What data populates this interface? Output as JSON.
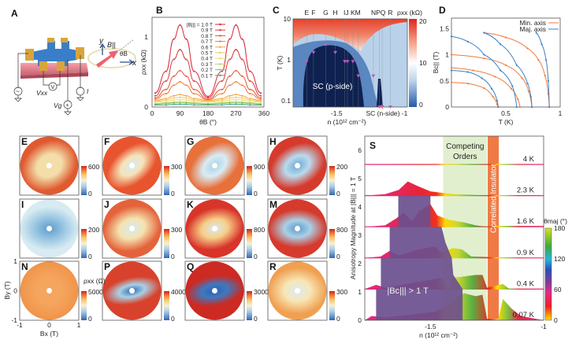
{
  "panels": {
    "A": {
      "label": "A",
      "vxx": "Vxx",
      "vg": "Vg",
      "current": "I",
      "x": "x",
      "y": "y",
      "b": "B||",
      "theta": "θB",
      "ac_symbol": "~",
      "v_symbol": "V",
      "plus_symbol": "+"
    },
    "B": {
      "label": "B"
    },
    "C": {
      "label": "C"
    },
    "D": {
      "label": "D"
    },
    "S": {
      "label": "S"
    }
  },
  "chart_data": [
    {
      "id": "B",
      "type": "line",
      "xlabel": "θB (°)",
      "ylabel": "ρxx (kΩ)",
      "xlim": [
        0,
        360
      ],
      "ylim": [
        0,
        1.28
      ],
      "xticks": [
        0,
        90,
        180,
        270,
        360
      ],
      "yticks": [
        0,
        1
      ],
      "legend_title": "|B||| =",
      "legend_placement": "top-center",
      "x": [
        10,
        45,
        70,
        90,
        110,
        135,
        180,
        225,
        250,
        270,
        290,
        315,
        350
      ],
      "series": [
        {
          "name": "1.0 T",
          "color": "#d62839",
          "values": [
            0.2,
            0.51,
            0.97,
            1.17,
            0.97,
            0.51,
            0.15,
            0.51,
            0.97,
            1.17,
            0.97,
            0.51,
            0.2
          ]
        },
        {
          "name": "0.9 T",
          "color": "#dc3a3a",
          "values": [
            0.16,
            0.37,
            0.68,
            0.82,
            0.68,
            0.37,
            0.13,
            0.37,
            0.68,
            0.82,
            0.68,
            0.37,
            0.16
          ]
        },
        {
          "name": "0.8 T",
          "color": "#e4533a",
          "values": [
            0.13,
            0.25,
            0.44,
            0.52,
            0.44,
            0.25,
            0.11,
            0.25,
            0.44,
            0.52,
            0.44,
            0.25,
            0.13
          ]
        },
        {
          "name": "0.7 T",
          "color": "#ef7d34",
          "values": [
            0.11,
            0.19,
            0.31,
            0.36,
            0.31,
            0.19,
            0.1,
            0.19,
            0.31,
            0.36,
            0.31,
            0.19,
            0.11
          ]
        },
        {
          "name": "0.6 T",
          "color": "#f5a43c",
          "values": [
            0.09,
            0.12,
            0.16,
            0.18,
            0.16,
            0.12,
            0.09,
            0.12,
            0.16,
            0.18,
            0.16,
            0.12,
            0.09
          ]
        },
        {
          "name": "0.5 T",
          "color": "#f4c95a",
          "values": [
            0.08,
            0.1,
            0.13,
            0.14,
            0.13,
            0.1,
            0.08,
            0.1,
            0.13,
            0.14,
            0.13,
            0.1,
            0.08
          ]
        },
        {
          "name": "0.4 T",
          "color": "#e7e06c",
          "values": [
            0.07,
            0.08,
            0.1,
            0.11,
            0.1,
            0.08,
            0.07,
            0.08,
            0.1,
            0.11,
            0.1,
            0.08,
            0.07
          ]
        },
        {
          "name": "0.3 T",
          "color": "#bcd36a",
          "values": [
            0.05,
            0.06,
            0.07,
            0.08,
            0.07,
            0.06,
            0.05,
            0.06,
            0.07,
            0.08,
            0.07,
            0.06,
            0.05
          ]
        },
        {
          "name": "0.2 T",
          "color": "#85c46e",
          "values": [
            0.04,
            0.05,
            0.06,
            0.06,
            0.06,
            0.05,
            0.04,
            0.05,
            0.06,
            0.06,
            0.06,
            0.05,
            0.04
          ]
        },
        {
          "name": "0.1 T",
          "color": "#3aa87a",
          "values": [
            0.03,
            0.03,
            0.04,
            0.04,
            0.04,
            0.03,
            0.03,
            0.03,
            0.04,
            0.04,
            0.04,
            0.03,
            0.03
          ]
        }
      ]
    },
    {
      "id": "C",
      "type": "heatmap",
      "xlabel": "n (10¹² cm⁻²)",
      "ylabel": "T (K)",
      "yscale": "log",
      "xlim": [
        -1.82,
        -0.98
      ],
      "ylim": [
        0.07,
        10
      ],
      "xticks": [
        "-1.5",
        "-1"
      ],
      "yticks": [
        "10",
        "1",
        "0.1"
      ],
      "colorbar": {
        "label": "ρxx (kΩ)",
        "min": 0,
        "max": 20,
        "ticks": [
          "0",
          "10",
          "20"
        ],
        "colors": [
          "#2a5aa8",
          "#ffffff",
          "#e8321e"
        ]
      },
      "annotations": [
        "SC (p-side)",
        "SC (n-side)"
      ],
      "markers": [
        {
          "label": "E",
          "n": -1.72,
          "T": 0.9
        },
        {
          "label": "F",
          "n": -1.67,
          "T": 1.5
        },
        {
          "label": "G",
          "n": -1.58,
          "T": 2.3
        },
        {
          "label": "H",
          "n": -1.51,
          "T": 1.5
        },
        {
          "label": "I",
          "n": -1.44,
          "T": 0.9
        },
        {
          "label": "J",
          "n": -1.42,
          "T": 0.9
        },
        {
          "label": "K",
          "n": -1.38,
          "T": 0.9
        },
        {
          "label": "M",
          "n": -1.34,
          "T": 0.4
        },
        {
          "label": "N",
          "n": -1.23,
          "T": 0.4
        },
        {
          "label": "P",
          "n": -1.185,
          "T": 0.07
        },
        {
          "label": "Q",
          "n": -1.165,
          "T": 0.07
        },
        {
          "label": "R",
          "n": -1.105,
          "T": 0.07
        }
      ]
    },
    {
      "id": "D",
      "type": "line",
      "xlabel": "T (K)",
      "ylabel": "Bc|| (T)",
      "xlim": [
        0,
        1
      ],
      "ylim": [
        0,
        1.7
      ],
      "xticks": [
        "0.5",
        "1"
      ],
      "yticks": [
        "0",
        "0.5",
        "1",
        "1.5"
      ],
      "legend_placement": "top-right",
      "series": [
        {
          "name": "Min. axis",
          "color": "#f07a3a",
          "curves": [
            [
              [
                0.3,
                1.42
              ],
              [
                0.5,
                1.33
              ],
              [
                0.7,
                1.12
              ],
              [
                0.8,
                0.9
              ],
              [
                0.86,
                0.6
              ],
              [
                0.89,
                0.25
              ],
              [
                0.9,
                0
              ]
            ],
            [
              [
                0,
                1.0
              ],
              [
                0.3,
                0.93
              ],
              [
                0.5,
                0.8
              ],
              [
                0.65,
                0.55
              ],
              [
                0.71,
                0.3
              ],
              [
                0.74,
                0
              ]
            ],
            [
              [
                0,
                0.75
              ],
              [
                0.2,
                0.7
              ],
              [
                0.4,
                0.58
              ],
              [
                0.55,
                0.35
              ],
              [
                0.61,
                0.15
              ],
              [
                0.63,
                0
              ]
            ],
            [
              [
                0,
                0.47
              ],
              [
                0.15,
                0.45
              ],
              [
                0.3,
                0.36
              ],
              [
                0.38,
                0.2
              ],
              [
                0.42,
                0.05
              ],
              [
                0.43,
                0
              ]
            ]
          ]
        },
        {
          "name": "Maj. axis",
          "color": "#3d7fc4",
          "curves": [
            [
              [
                0.78,
                1.42
              ],
              [
                0.83,
                1.2
              ],
              [
                0.87,
                0.9
              ],
              [
                0.89,
                0.5
              ],
              [
                0.9,
                0
              ]
            ],
            [
              [
                0.3,
                1.42
              ],
              [
                0.45,
                1.2
              ],
              [
                0.6,
                0.8
              ],
              [
                0.7,
                0.45
              ],
              [
                0.73,
                0.2
              ],
              [
                0.74,
                0
              ]
            ],
            [
              [
                0,
                1.35
              ],
              [
                0.15,
                1.25
              ],
              [
                0.3,
                1.0
              ],
              [
                0.45,
                0.7
              ],
              [
                0.56,
                0.4
              ],
              [
                0.6,
                0
              ]
            ],
            [
              [
                0,
                0.7
              ],
              [
                0.15,
                0.67
              ],
              [
                0.28,
                0.55
              ],
              [
                0.37,
                0.35
              ],
              [
                0.42,
                0.12
              ],
              [
                0.43,
                0
              ]
            ]
          ]
        }
      ]
    },
    {
      "id": "E-R",
      "type": "heatmap",
      "xlabel": "Bx (T)",
      "ylabel": "By (T)",
      "xticks": [
        "-1",
        "0",
        "1"
      ],
      "yticks": [
        "1",
        "0",
        "-1"
      ],
      "colorbar_label": "ρxx (Ω)",
      "panels": [
        {
          "label": "E",
          "max": "600",
          "min": "0"
        },
        {
          "label": "F",
          "max": "300",
          "min": "0"
        },
        {
          "label": "G",
          "max": "900",
          "min": "0"
        },
        {
          "label": "H",
          "max": "200",
          "min": "0"
        },
        {
          "label": "I",
          "max": "200",
          "min": "0"
        },
        {
          "label": "J",
          "max": "300",
          "min": "0"
        },
        {
          "label": "K",
          "max": "800",
          "min": "0"
        },
        {
          "label": "M",
          "max": "800",
          "min": "0"
        },
        {
          "label": "N",
          "max": "5000",
          "min": "0"
        },
        {
          "label": "P",
          "max": "4000",
          "min": "0"
        },
        {
          "label": "Q",
          "max": "3000",
          "min": "0"
        },
        {
          "label": "R",
          "max": "300",
          "min": "0"
        }
      ]
    },
    {
      "id": "S",
      "type": "area",
      "xlabel": "n (10¹² cm⁻²)",
      "ylabel": "Anisotropy Magnitude at |B||| = 1 T",
      "xlim": [
        -1.79,
        -1
      ],
      "ylim": [
        0,
        6.5
      ],
      "xticks": [
        "-1.5",
        "-1"
      ],
      "yticks": [
        "0",
        "1",
        "2",
        "3",
        "4",
        "5",
        "6"
      ],
      "colorbar": {
        "label": "θmaj (°)",
        "min": 0,
        "max": 180,
        "ticks": [
          "0",
          "60",
          "120",
          "180"
        ]
      },
      "regions": [
        {
          "label": "Competing Orders",
          "from": -1.444,
          "to": -1.25,
          "color": "#e2efcf"
        },
        {
          "label": "Correlated Insulator",
          "from": -1.247,
          "to": -1.198,
          "color": "#f07a45"
        }
      ],
      "bc_region": {
        "label": "|Bc||| > 1 T",
        "color": "#6b4f8e",
        "polygon": [
          [
            -1.642,
            4.4
          ],
          [
            -1.5,
            4.4
          ],
          [
            -1.5,
            3.3
          ],
          [
            -1.451,
            3.3
          ],
          [
            -1.434,
            2.75
          ],
          [
            -1.406,
            2.2
          ],
          [
            -1.399,
            1.6
          ],
          [
            -1.358,
            1.1
          ],
          [
            -1.358,
            0
          ],
          [
            -1.74,
            0
          ],
          [
            -1.74,
            1.1
          ],
          [
            -1.719,
            1.1
          ],
          [
            -1.719,
            2.2
          ],
          [
            -1.68,
            2.2
          ],
          [
            -1.68,
            3.3
          ],
          [
            -1.642,
            3.3
          ]
        ]
      },
      "series": [
        {
          "name": "4 K",
          "baseline": 5.5,
          "points": [
            [
              -1.79,
              5.5
            ],
            [
              -1,
              5.5
            ]
          ]
        },
        {
          "name": "2.3 K",
          "baseline": 4.4,
          "points": [
            [
              -1.79,
              4.4
            ],
            [
              -1.7,
              4.45
            ],
            [
              -1.64,
              4.6
            ],
            [
              -1.6,
              4.9
            ],
            [
              -1.56,
              4.75
            ],
            [
              -1.5,
              4.55
            ],
            [
              -1.4,
              4.45
            ],
            [
              -1.3,
              4.42
            ],
            [
              -1,
              4.4
            ]
          ]
        },
        {
          "name": "1.6 K",
          "baseline": 3.3,
          "points": [
            [
              -1.79,
              3.3
            ],
            [
              -1.7,
              3.35
            ],
            [
              -1.65,
              3.6
            ],
            [
              -1.62,
              3.8
            ],
            [
              -1.58,
              3.5
            ],
            [
              -1.55,
              3.85
            ],
            [
              -1.5,
              4.1
            ],
            [
              -1.47,
              3.7
            ],
            [
              -1.42,
              3.55
            ],
            [
              -1.35,
              3.45
            ],
            [
              -1.3,
              3.35
            ],
            [
              -1.25,
              3.3
            ],
            [
              -1.2,
              3.33
            ],
            [
              -1,
              3.33
            ]
          ]
        },
        {
          "name": "0.9 K",
          "baseline": 2.2,
          "points": [
            [
              -1.79,
              2.2
            ],
            [
              -1.72,
              2.25
            ],
            [
              -1.68,
              2.45
            ],
            [
              -1.64,
              2.3
            ],
            [
              -1.55,
              2.5
            ],
            [
              -1.48,
              2.6
            ],
            [
              -1.45,
              2.4
            ],
            [
              -1.4,
              2.55
            ],
            [
              -1.36,
              2.5
            ],
            [
              -1.32,
              2.25
            ],
            [
              -1.2,
              2.22
            ],
            [
              -1,
              2.2
            ]
          ]
        },
        {
          "name": "0.4 K",
          "baseline": 1.1,
          "points": [
            [
              -1.79,
              1.1
            ],
            [
              -1.74,
              1.25
            ],
            [
              -1.7,
              1.15
            ],
            [
              -1.45,
              1.5
            ],
            [
              -1.42,
              1.1
            ],
            [
              -1.4,
              1.5
            ],
            [
              -1.35,
              1.55
            ],
            [
              -1.3,
              1.6
            ],
            [
              -1.27,
              1.6
            ],
            [
              -1.25,
              1.15
            ],
            [
              -1.18,
              1.28
            ],
            [
              -1.15,
              1.1
            ],
            [
              -1,
              1.1
            ]
          ]
        },
        {
          "name": "0.07 K",
          "baseline": 0,
          "points": [
            [
              -1.79,
              0
            ],
            [
              -1.76,
              0.15
            ],
            [
              -1.7,
              0.1
            ],
            [
              -1.48,
              0.3
            ],
            [
              -1.42,
              0.55
            ],
            [
              -1.38,
              0.85
            ],
            [
              -1.35,
              0.95
            ],
            [
              -1.3,
              0.85
            ],
            [
              -1.27,
              0.9
            ],
            [
              -1.25,
              0.05
            ],
            [
              -1.2,
              0.05
            ],
            [
              -1.18,
              0.75
            ],
            [
              -1.14,
              0.4
            ],
            [
              -1.1,
              0.15
            ],
            [
              -1,
              0
            ]
          ]
        }
      ]
    }
  ]
}
